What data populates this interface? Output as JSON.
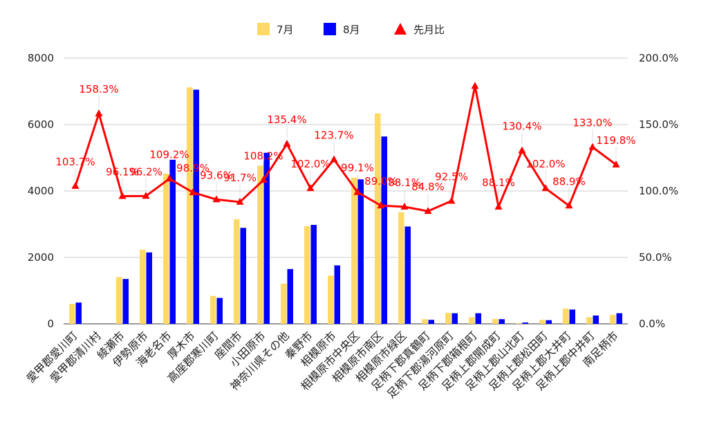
{
  "chart_data": {
    "type": "bar",
    "categories": [
      "愛甲郡愛川町",
      "愛甲郡清川村",
      "綾瀬市",
      "伊勢原市",
      "海老名市",
      "厚木市",
      "高座郡寒川町",
      "座間市",
      "小田原市",
      "神奈川県その他",
      "秦野市",
      "相模原市",
      "相模原市中央区",
      "相模原市南区",
      "相模原市緑区",
      "足柄下郡真鶴町",
      "足柄下郡湯河原町",
      "足柄下郡箱根町",
      "足柄上郡開成町",
      "足柄上郡山北町",
      "足柄上郡松田町",
      "足柄上郡大井町",
      "足柄上郡中井町",
      "南足柄市"
    ],
    "series": [
      {
        "name": "7月",
        "axis": "left",
        "kind": "bar",
        "color": "#ffd966",
        "values": [
          600,
          0,
          1410,
          2230,
          4520,
          7120,
          840,
          3150,
          4760,
          1210,
          2940,
          1450,
          4400,
          6340,
          3360,
          140,
          330,
          200,
          150,
          20,
          120,
          460,
          200,
          270
        ]
      },
      {
        "name": "8月",
        "axis": "left",
        "kind": "bar",
        "color": "#0000ff",
        "values": [
          640,
          0,
          1350,
          2150,
          4940,
          7050,
          780,
          2890,
          5150,
          1650,
          2980,
          1760,
          4350,
          5640,
          2930,
          120,
          320,
          320,
          140,
          40,
          110,
          430,
          250,
          320
        ]
      },
      {
        "name": "先月比",
        "axis": "right",
        "kind": "line",
        "color": "#ff0000",
        "marker": "triangle",
        "values": [
          103.7,
          158.3,
          96.1,
          96.2,
          109.2,
          98.9,
          93.6,
          91.7,
          108.2,
          135.4,
          102.0,
          123.7,
          99.1,
          89.0,
          88.1,
          84.8,
          92.5,
          179.0,
          88.1,
          130.4,
          102.0,
          88.9,
          133.0,
          119.8
        ],
        "labels": [
          "103.7%",
          "158.3%",
          "96.1%",
          "96.2%",
          "109.2%",
          "98.9%",
          "93.6%",
          "91.7%",
          "108.2%",
          "135.4%",
          "102.0%",
          "123.7%",
          "99.1%",
          "89.0%",
          "88.1%",
          "84.8%",
          "92.5%",
          "",
          "88.1%",
          "130.4%",
          "102.0%",
          "88.9%",
          "133.0%",
          "119.8%"
        ]
      }
    ],
    "yleft": {
      "min": 0,
      "max": 8000,
      "ticks": [
        "0",
        "2000",
        "4000",
        "6000",
        "8000"
      ]
    },
    "yright": {
      "min": 0,
      "max": 200,
      "ticks": [
        "0.0%",
        "50.0%",
        "100.0%",
        "150.0%",
        "200.0%"
      ]
    },
    "legend": {
      "position": "top-center"
    },
    "grid": true,
    "colors": {
      "grid": "#cccccc",
      "text": "#222222"
    }
  }
}
